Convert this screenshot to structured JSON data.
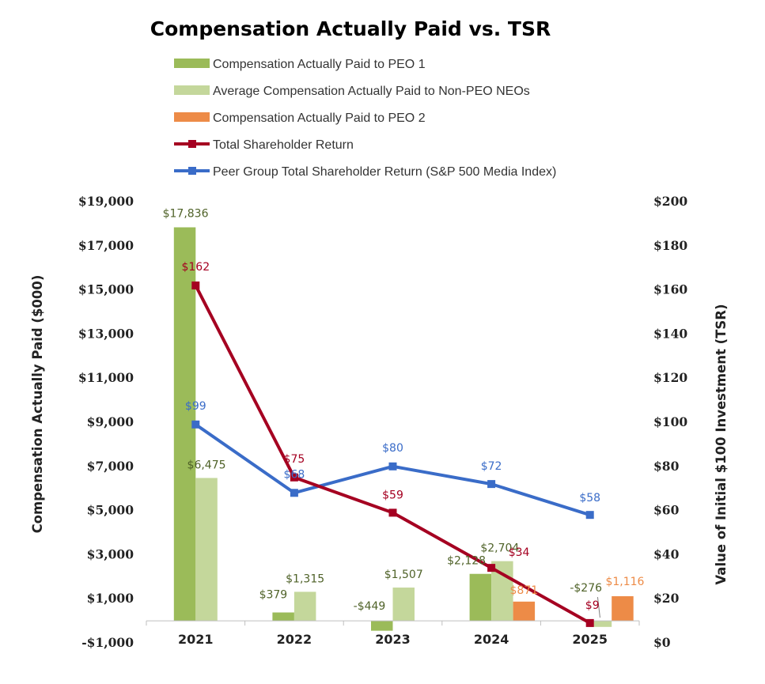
{
  "chart_data": {
    "type": "bar",
    "title": "Compensation Actually Paid vs. TSR",
    "categories": [
      "2021",
      "2022",
      "2023",
      "2024",
      "2025"
    ],
    "ylabel": "Compensation Actually Paid ($000)",
    "y2label": "Value of Initial $100 Investment (TSR)",
    "ylim": [
      -1000,
      19000
    ],
    "y2lim": [
      0,
      200
    ],
    "yticks": [
      "$19,000",
      "$17,000",
      "$15,000",
      "$13,000",
      "$11,000",
      "$9,000",
      "$7,000",
      "$5,000",
      "$3,000",
      "$1,000",
      "-$1,000"
    ],
    "y2ticks": [
      "$200",
      "$180",
      "$160",
      "$140",
      "$120",
      "$100",
      "$80",
      "$60",
      "$40",
      "$20",
      "$0"
    ],
    "legend_position": "top",
    "series": [
      {
        "name": "Compensation Actually Paid to PEO 1",
        "kind": "bar",
        "axis": "left",
        "color": "#9bbb59",
        "label_color": "#4f6228",
        "values": [
          17836,
          379,
          -449,
          2128,
          null
        ],
        "labels": [
          "$17,836",
          "$379",
          "-$449",
          "$2,128",
          ""
        ]
      },
      {
        "name": "Average Compensation Actually Paid to Non-PEO NEOs",
        "kind": "bar",
        "axis": "left",
        "color": "#c4d79b",
        "label_color": "#4f6228",
        "values": [
          6475,
          1315,
          1507,
          2704,
          -276
        ],
        "labels": [
          "$6,475",
          "$1,315",
          "$1,507",
          "$2,704",
          "-$276"
        ]
      },
      {
        "name": "Compensation Actually Paid to PEO 2",
        "kind": "bar",
        "axis": "left",
        "color": "#ed8b47",
        "label_color": "#ed8b47",
        "values": [
          null,
          null,
          null,
          871,
          1116
        ],
        "labels": [
          "",
          "",
          "",
          "$871",
          "$1,116"
        ]
      },
      {
        "name": "Total Shareholder Return",
        "kind": "line",
        "axis": "right",
        "color": "#a50021",
        "label_color": "#a50021",
        "values": [
          162,
          75,
          59,
          34,
          9
        ],
        "labels": [
          "$162",
          "$75",
          "$59",
          "$34",
          "$9"
        ]
      },
      {
        "name": "Peer Group Total Shareholder Return (S&P 500 Media Index)",
        "kind": "line",
        "axis": "right",
        "color": "#3a6cc8",
        "label_color": "#3a6cc8",
        "values": [
          99,
          68,
          80,
          72,
          58
        ],
        "labels": [
          "$99",
          "$68",
          "$80",
          "$72",
          "$58"
        ]
      }
    ]
  }
}
